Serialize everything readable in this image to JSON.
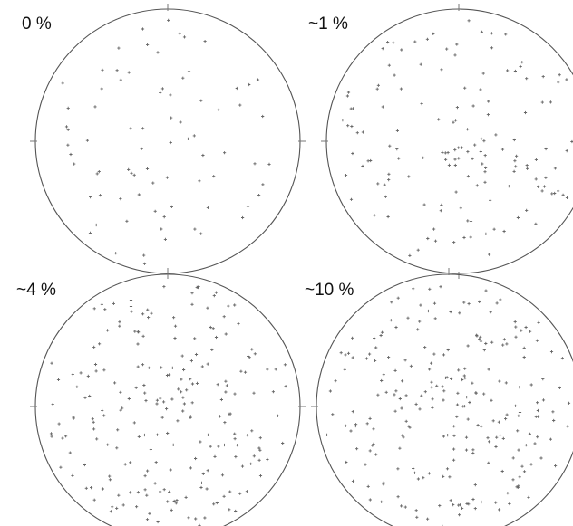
{
  "panels": [
    {
      "label": "0 %",
      "point_count": 78,
      "seed": 11
    },
    {
      "label": "~1 %",
      "point_count": 150,
      "seed": 23
    },
    {
      "label": "~4 %",
      "point_count": 230,
      "seed": 37
    },
    {
      "label": "~10 %",
      "point_count": 240,
      "seed": 53
    }
  ]
}
